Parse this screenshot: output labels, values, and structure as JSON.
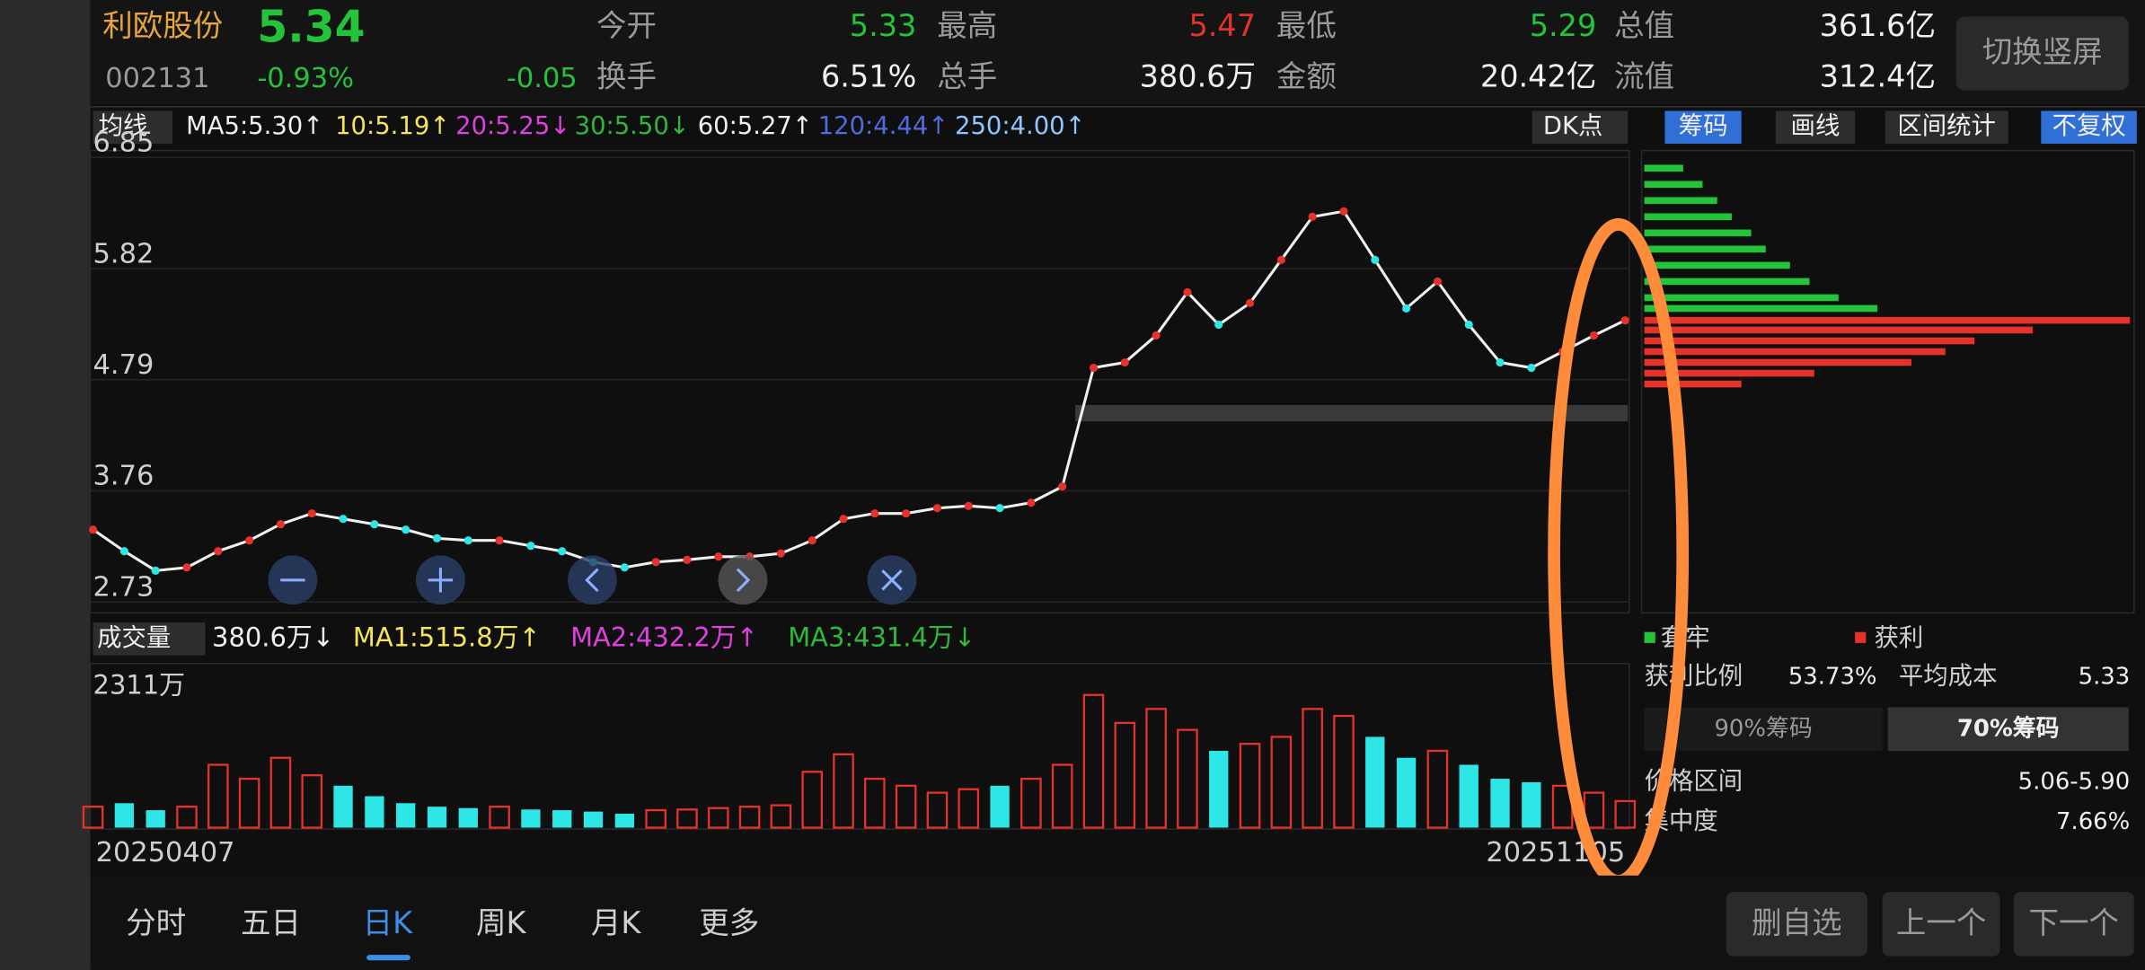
{
  "header": {
    "name": "利欧股份",
    "price": "5.34",
    "code": "002131",
    "change_pct": "-0.93%",
    "change": "-0.05",
    "stats": [
      {
        "label": "今开",
        "value": "5.33"
      },
      {
        "label": "最高",
        "value": "5.47"
      },
      {
        "label": "最低",
        "value": "5.29"
      },
      {
        "label": "总值",
        "value": "361.6亿"
      },
      {
        "label": "换手",
        "value": "6.51%"
      },
      {
        "label": "总手",
        "value": "380.6万"
      },
      {
        "label": "金额",
        "value": "20.42亿"
      },
      {
        "label": "流值",
        "value": "312.4亿"
      }
    ],
    "button": "切换竖屏"
  },
  "ma_bar": {
    "selector": "均线",
    "items": [
      "MA5:5.30↑",
      "10:5.19↑",
      "20:5.25↓",
      "30:5.50↓",
      "60:5.27↑",
      "120:4.44↑",
      "250:4.00↑"
    ],
    "dk": "DK点",
    "tabs": [
      "筹码",
      "画线",
      "区间统计",
      "不复权"
    ]
  },
  "price_chart": {
    "type": "line",
    "ylim": [
      2.73,
      6.85
    ],
    "yticks": [
      6.85,
      5.82,
      4.79,
      3.76,
      2.73
    ],
    "closes": [
      3.4,
      3.2,
      3.02,
      3.05,
      3.2,
      3.3,
      3.45,
      3.55,
      3.5,
      3.45,
      3.4,
      3.32,
      3.3,
      3.3,
      3.25,
      3.2,
      3.1,
      3.05,
      3.1,
      3.12,
      3.15,
      3.15,
      3.18,
      3.3,
      3.5,
      3.55,
      3.55,
      3.6,
      3.62,
      3.6,
      3.65,
      3.8,
      4.9,
      4.95,
      5.2,
      5.6,
      5.3,
      5.5,
      5.9,
      6.3,
      6.35,
      5.9,
      5.45,
      5.7,
      5.3,
      4.95,
      4.9,
      5.05,
      5.2,
      5.34
    ]
  },
  "volume_bar": {
    "label": "成交量",
    "items": [
      "380.6万↓",
      "MA1:515.8万↑",
      "MA2:432.2万↑",
      "MA3:431.4万↓"
    ]
  },
  "volume_chart": {
    "type": "bar",
    "ylim": [
      0,
      2311
    ],
    "yticks": [
      {
        "value": 2311,
        "label": "2311万"
      }
    ],
    "values": [
      300,
      350,
      250,
      300,
      900,
      700,
      1000,
      750,
      600,
      450,
      350,
      300,
      280,
      300,
      260,
      250,
      230,
      200,
      250,
      260,
      280,
      300,
      320,
      800,
      1050,
      700,
      600,
      500,
      550,
      600,
      700,
      900,
      1900,
      1500,
      1700,
      1400,
      1100,
      1200,
      1300,
      1700,
      1600,
      1300,
      1000,
      1100,
      900,
      700,
      650,
      600,
      500,
      380.6
    ]
  },
  "dates": [
    "20250407",
    "20251105"
  ],
  "chips": {
    "prices": [
      6.75,
      6.6,
      6.45,
      6.3,
      6.15,
      6.0,
      5.85,
      5.7,
      5.55,
      5.45,
      5.34,
      5.25,
      5.15,
      5.05,
      4.95,
      4.85,
      4.75
    ],
    "amounts": [
      8,
      12,
      15,
      18,
      22,
      25,
      30,
      34,
      40,
      48,
      100,
      80,
      68,
      62,
      55,
      35,
      20
    ]
  },
  "chip_panel": {
    "legend": [
      "套牢",
      "获利"
    ],
    "profit_label": "获利比例",
    "profit": "53.73%",
    "cost_label": "平均成本",
    "cost": "5.33",
    "buttons": [
      "90%筹码",
      "70%筹码"
    ],
    "range_label": "价格区间",
    "range": "5.06-5.90",
    "conc_label": "集中度",
    "conc": "7.66%"
  },
  "tabs": [
    "分时",
    "五日",
    "日K",
    "周K",
    "月K",
    "更多"
  ],
  "buttons": [
    "删自选",
    "上一个",
    "下一个"
  ]
}
